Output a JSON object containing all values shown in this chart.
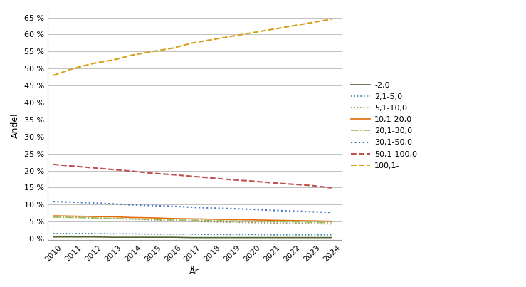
{
  "years": [
    2010,
    2011,
    2012,
    2013,
    2014,
    2015,
    2016,
    2017,
    2018,
    2019,
    2020,
    2021,
    2022,
    2023,
    2024
  ],
  "series": {
    "-2,0": [
      0.5,
      0.5,
      0.5,
      0.4,
      0.4,
      0.4,
      0.4,
      0.3,
      0.3,
      0.3,
      0.3,
      0.3,
      0.3,
      0.3,
      0.3
    ],
    "2,1-5,0": [
      1.5,
      1.5,
      1.5,
      1.4,
      1.4,
      1.3,
      1.3,
      1.3,
      1.2,
      1.2,
      1.2,
      1.1,
      1.1,
      1.1,
      1.1
    ],
    "5,1-10,0": [
      6.5,
      6.3,
      6.1,
      5.9,
      5.7,
      5.5,
      5.3,
      5.1,
      4.9,
      4.8,
      4.7,
      4.6,
      4.5,
      4.4,
      4.3
    ],
    "10,1-20,0": [
      6.7,
      6.6,
      6.5,
      6.4,
      6.2,
      6.1,
      5.9,
      5.8,
      5.7,
      5.6,
      5.5,
      5.4,
      5.3,
      5.2,
      5.1
    ],
    "20,1-30,0": [
      6.3,
      6.2,
      6.1,
      5.9,
      5.8,
      5.6,
      5.5,
      5.4,
      5.3,
      5.2,
      5.1,
      5.0,
      4.9,
      4.8,
      4.7
    ],
    "30,1-50,0": [
      10.9,
      10.7,
      10.5,
      10.2,
      9.9,
      9.7,
      9.5,
      9.2,
      9.0,
      8.8,
      8.6,
      8.3,
      8.1,
      7.9,
      7.7
    ],
    "50,1-100,0": [
      21.8,
      21.3,
      20.8,
      20.3,
      19.8,
      19.2,
      18.8,
      18.3,
      17.8,
      17.3,
      16.9,
      16.4,
      16.0,
      15.6,
      14.9
    ],
    "100,1-": [
      48.0,
      50.0,
      51.5,
      52.5,
      54.0,
      55.0,
      56.0,
      57.5,
      58.5,
      59.5,
      60.5,
      61.5,
      62.5,
      63.5,
      64.5
    ]
  },
  "line_styles": {
    "-2,0": {
      "color": "#4f6228",
      "linestyle": "-",
      "linewidth": 1.2
    },
    "2,1-5,0": {
      "color": "#31849b",
      "linestyle": ":",
      "linewidth": 1.2
    },
    "5,1-10,0": {
      "color": "#948a54",
      "linestyle": ":",
      "linewidth": 1.2
    },
    "10,1-20,0": {
      "color": "#e26b0a",
      "linestyle": "-",
      "linewidth": 1.2
    },
    "20,1-30,0": {
      "color": "#9bbb59",
      "linestyle": "-.",
      "linewidth": 1.2
    },
    "30,1-50,0": {
      "color": "#4472c4",
      "linestyle": ":",
      "linewidth": 1.5
    },
    "50,1-100,0": {
      "color": "#c0504d",
      "linestyle": "--",
      "linewidth": 1.5
    },
    "100,1-": {
      "color": "#d4a017",
      "linestyle": "--",
      "linewidth": 1.5
    }
  },
  "ylabel": "Andel",
  "xlabel": "År",
  "yticks": [
    0,
    5,
    10,
    15,
    20,
    25,
    30,
    35,
    40,
    45,
    50,
    55,
    60,
    65
  ],
  "ylim": [
    -0.5,
    67
  ],
  "xlim": [
    2009.7,
    2024.5
  ],
  "background_color": "#ffffff",
  "grid_color": "#c0c0c0",
  "legend_labels": [
    "-2,0",
    "2,1-5,0",
    "5,1-10,0",
    "10,1-20,0",
    "20,1-30,0",
    "30,1-50,0",
    "50,1-100,0",
    "100,1-"
  ]
}
